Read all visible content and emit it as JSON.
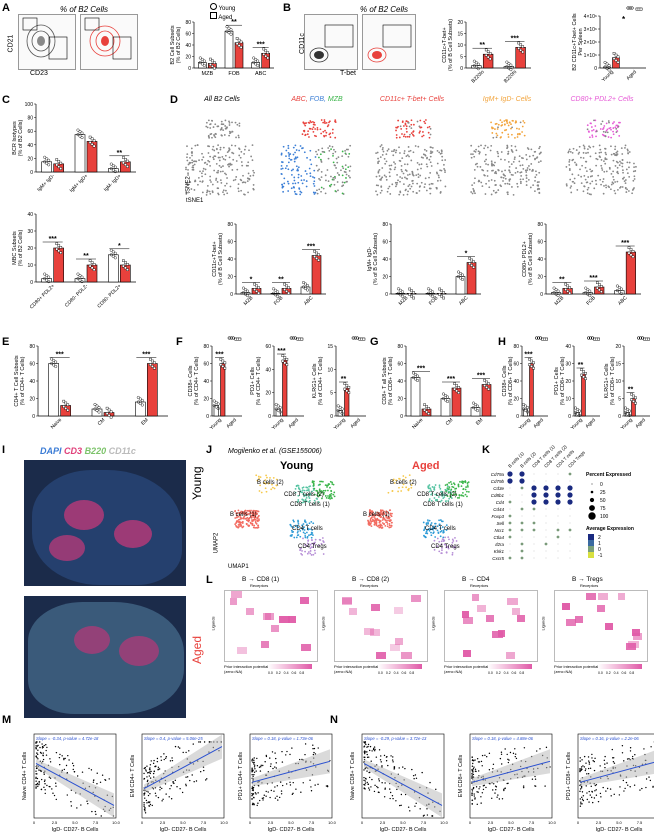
{
  "colors": {
    "young": "#ffffff",
    "aged": "#e8413c",
    "abc": "#e8413c",
    "fob": "#3c7fd6",
    "mzb": "#3bb54a",
    "igm": "#f2a33a",
    "cd80": "#e65ad6",
    "heat": "#e05aa7",
    "dapi": "#3a7bd5",
    "cd3": "#e0407a",
    "b220": "#7cc36a",
    "cd11c": "#cccccc"
  },
  "panels": {
    "A": "A",
    "B": "B",
    "C": "C",
    "D": "D",
    "E": "E",
    "F": "F",
    "G": "G",
    "H": "H",
    "I": "I",
    "J": "J",
    "K": "K",
    "L": "L",
    "M": "M",
    "N": "N"
  },
  "legend": {
    "young": "Young",
    "aged": "Aged"
  },
  "A": {
    "flow_title": "% of B2 Cells",
    "xaxis": "CD23",
    "yaxis": "CD21",
    "bar_ylabel": "B2 Cell Subsets\n(% of B2 Cells)",
    "categories": [
      "MZB",
      "FOB",
      "ABC"
    ],
    "sig": [
      "**",
      "***"
    ]
  },
  "B": {
    "flow_title": "% of B2 Cells",
    "xaxis": "T-bet",
    "yaxis": "CD11c",
    "gate_young": "CD11c+ T-bet+\n0.28",
    "gate_aged": "CD11c+ T-bet+\n7.93",
    "bar_ylabel": "CD11c+T-bet+\n(% of B Cell Subsets)",
    "categories": [
      "B220lo",
      "B220hi"
    ],
    "sig": [
      "**",
      "***"
    ],
    "spleen_ylabel": "B2 CD11c+T-bet+ Cells\nPer Spleen",
    "spleen_ticks": [
      "0",
      "1×10⁶",
      "2×10⁶",
      "3×10⁶",
      "4×10⁶"
    ],
    "spleen_cats": [
      "Young",
      "Aged"
    ],
    "spleen_sig": "*"
  },
  "C": {
    "bcr_ylabel": "BCR Isotypes\n(% of B2 Cells)",
    "bcr_ticks": [
      "0",
      "20",
      "40",
      "60",
      "80",
      "100"
    ],
    "bcr_cats": [
      "IgM+ IgD-",
      "IgM+ IgD+",
      "IgM- IgD+"
    ],
    "bcr_sig": "**",
    "mbc_ylabel": "MBC Subsets\n(% of B2 Cells)",
    "mbc_ticks": [
      "0",
      "10",
      "20",
      "30",
      "40"
    ],
    "mbc_cats": [
      "CD80+ PDL2+",
      "CD80- PDL2-",
      "CD80- PDL2+"
    ],
    "mbc_sig": [
      "***",
      "**",
      "*"
    ]
  },
  "D": {
    "tsne_titles": [
      "All B2 Cells",
      "ABC",
      "FOB",
      "MZB",
      "CD11c+ T-bet+ Cells",
      "IgM+ IgD- Cells",
      "CD80+ PDL2+ Cells"
    ],
    "tsne_x": "tSNE1",
    "tsne_y": "tSNE2",
    "cats": [
      "MZB",
      "FOB",
      "ABC"
    ],
    "bar1_ylabel": "CD11c+T-bet+\n(% of B Cell Subsets)",
    "bar1_ticks": [
      "0",
      "20",
      "40",
      "60",
      "80"
    ],
    "bar1_sig": [
      "*",
      "**",
      "***"
    ],
    "bar2_ylabel": "IgM+ IgD-\n(% of B Cell Subsets)",
    "bar2_ticks": [
      "0",
      "20",
      "40",
      "60",
      "80"
    ],
    "bar2_sig": "*",
    "bar3_ylabel": "CD80+ PDL2+\n(% of B Cell Subsets)",
    "bar3_ticks": [
      "0",
      "20",
      "40",
      "60",
      "80"
    ],
    "bar3_sig": [
      "**",
      "***",
      "***"
    ]
  },
  "E": {
    "ylabel": "CD4+ T Cell Subsets\n(% of CD4+ T Cells)",
    "ticks": [
      "0",
      "20",
      "40",
      "60",
      "80"
    ],
    "cats": [
      "Naive",
      "CM",
      "EM"
    ],
    "sig": [
      "***",
      "***"
    ]
  },
  "F": {
    "p1_ylabel": "CD38+ Cells\n(% of CD4+ T Cells)",
    "p1_ticks": [
      "0",
      "20",
      "40",
      "60",
      "80"
    ],
    "p1_sig": "***",
    "p2_ylabel": "PD1+ Cells\n(% of CD4+ T Cells)",
    "p2_ticks": [
      "0",
      "20",
      "40",
      "60"
    ],
    "p2_sig": "***",
    "p3_ylabel": "KLRG1+ Cells\n(% of CD4+ T Cells)",
    "p3_ticks": [
      "0",
      "5",
      "10",
      "15"
    ],
    "p3_sig": "**",
    "cats": [
      "Young",
      "Aged"
    ]
  },
  "G": {
    "ylabel": "CD8+ T all Subsets\n(% of CD8+ T Cells)",
    "ticks": [
      "0",
      "20",
      "40",
      "60",
      "80"
    ],
    "cats": [
      "Naive",
      "CM",
      "EM"
    ],
    "sig": [
      "***",
      "***",
      "***"
    ]
  },
  "H": {
    "p1_ylabel": "CD38+ Cells\n(% of CD8+ T Cells)",
    "p1_ticks": [
      "0",
      "20",
      "40",
      "60",
      "80"
    ],
    "p1_sig": "***",
    "p2_ylabel": "PD1+ Cells\n(% of CD8+ T Cells)",
    "p2_ticks": [
      "0",
      "10",
      "20",
      "30",
      "40"
    ],
    "p2_sig": "**",
    "p3_ylabel": "KLRG1+ Cells\n(% of CD8+ T Cells)",
    "p3_ticks": [
      "0",
      "5",
      "10",
      "15",
      "20"
    ],
    "p3_sig": "**",
    "cats": [
      "Young",
      "Aged"
    ]
  },
  "I": {
    "stains": [
      "DAPI",
      "CD3",
      "B220",
      "CD11c"
    ],
    "young": "Young",
    "aged": "Aged"
  },
  "J": {
    "source": "Mogilenko et al. (GSE155006)",
    "young_title": "Young",
    "aged_title": "Aged",
    "umap_x": "UMAP1",
    "umap_y": "UMAP2",
    "young_labels": [
      "B cells (2)",
      "CD8 T cells (2)",
      "CD8 T cells (1)",
      "B cells (1)",
      "CD4 T cells",
      "CD4 Tregs"
    ],
    "aged_labels": [
      "B cells (2)",
      "CD8 T cells (2)",
      "CD8 T cells (1)",
      "B cells (1)",
      "CD4 T cells",
      "CD4 Tregs"
    ]
  },
  "K": {
    "columns": [
      "B cells (1)",
      "B cells (2)",
      "CD8 T cells (1)",
      "CD8 T cells (2)",
      "CD4 T cells",
      "CD4 Tregs"
    ],
    "genes": [
      "Cd79a",
      "Cd79b",
      "Cd3e",
      "Cd8b1",
      "Cd4",
      "Cd44",
      "Foxp3",
      "Sell",
      "Ncr1",
      "Ctla4",
      "Il2ra",
      "Klrk1",
      "Cxcr5"
    ],
    "legend_pct_title": "Percent Expressed",
    "legend_pct": [
      "0",
      "25",
      "50",
      "75",
      "100"
    ],
    "legend_avg_title": "Average Expression",
    "legend_avg": [
      "2",
      "1",
      "0",
      "-1"
    ]
  },
  "L": {
    "titles": [
      "B → CD8 (1)",
      "B → CD8 (2)",
      "B → CD4",
      "B → Tregs"
    ],
    "xlabel": "Receptors",
    "ylabel": "Ligands",
    "legend": "Prior interaction potential\n(zero=NA)",
    "legend_ticks": [
      "0.0",
      "0.2",
      "0.4",
      "0.6",
      "0.8"
    ]
  },
  "M": {
    "xlabel": "IgD- CD27- B Cells",
    "plots": [
      {
        "ylabel": "Naive CD4+ T Cells",
        "stat": "Slope = -0.34,  p-value = 4.72e-18"
      },
      {
        "ylabel": "EM CD4+ T Cells",
        "stat": "Slope = 0.4,  p-value = 5.06e-25"
      },
      {
        "ylabel": "PD1+ CD4+ T Cells",
        "stat": "Slope = 0.18,  p-value = 1.73e-06"
      }
    ]
  },
  "N": {
    "xlabel": "IgD- CD27- B Cells",
    "plots": [
      {
        "ylabel": "Naive CD8+ T Cells",
        "stat": "Slope = -0.29,  p-value = 3.72e-13"
      },
      {
        "ylabel": "EM CD8+ T Cells",
        "stat": "Slope = 0.18,  p-value = 4.88e-06"
      },
      {
        "ylabel": "PD1+ CD8+ T Cells",
        "stat": "Slope = 0.16,  p-value = 2.2e-06"
      }
    ]
  },
  "scatter_ticks_x": [
    "0",
    "2.5",
    "5.0",
    "7.5",
    "10.0"
  ]
}
